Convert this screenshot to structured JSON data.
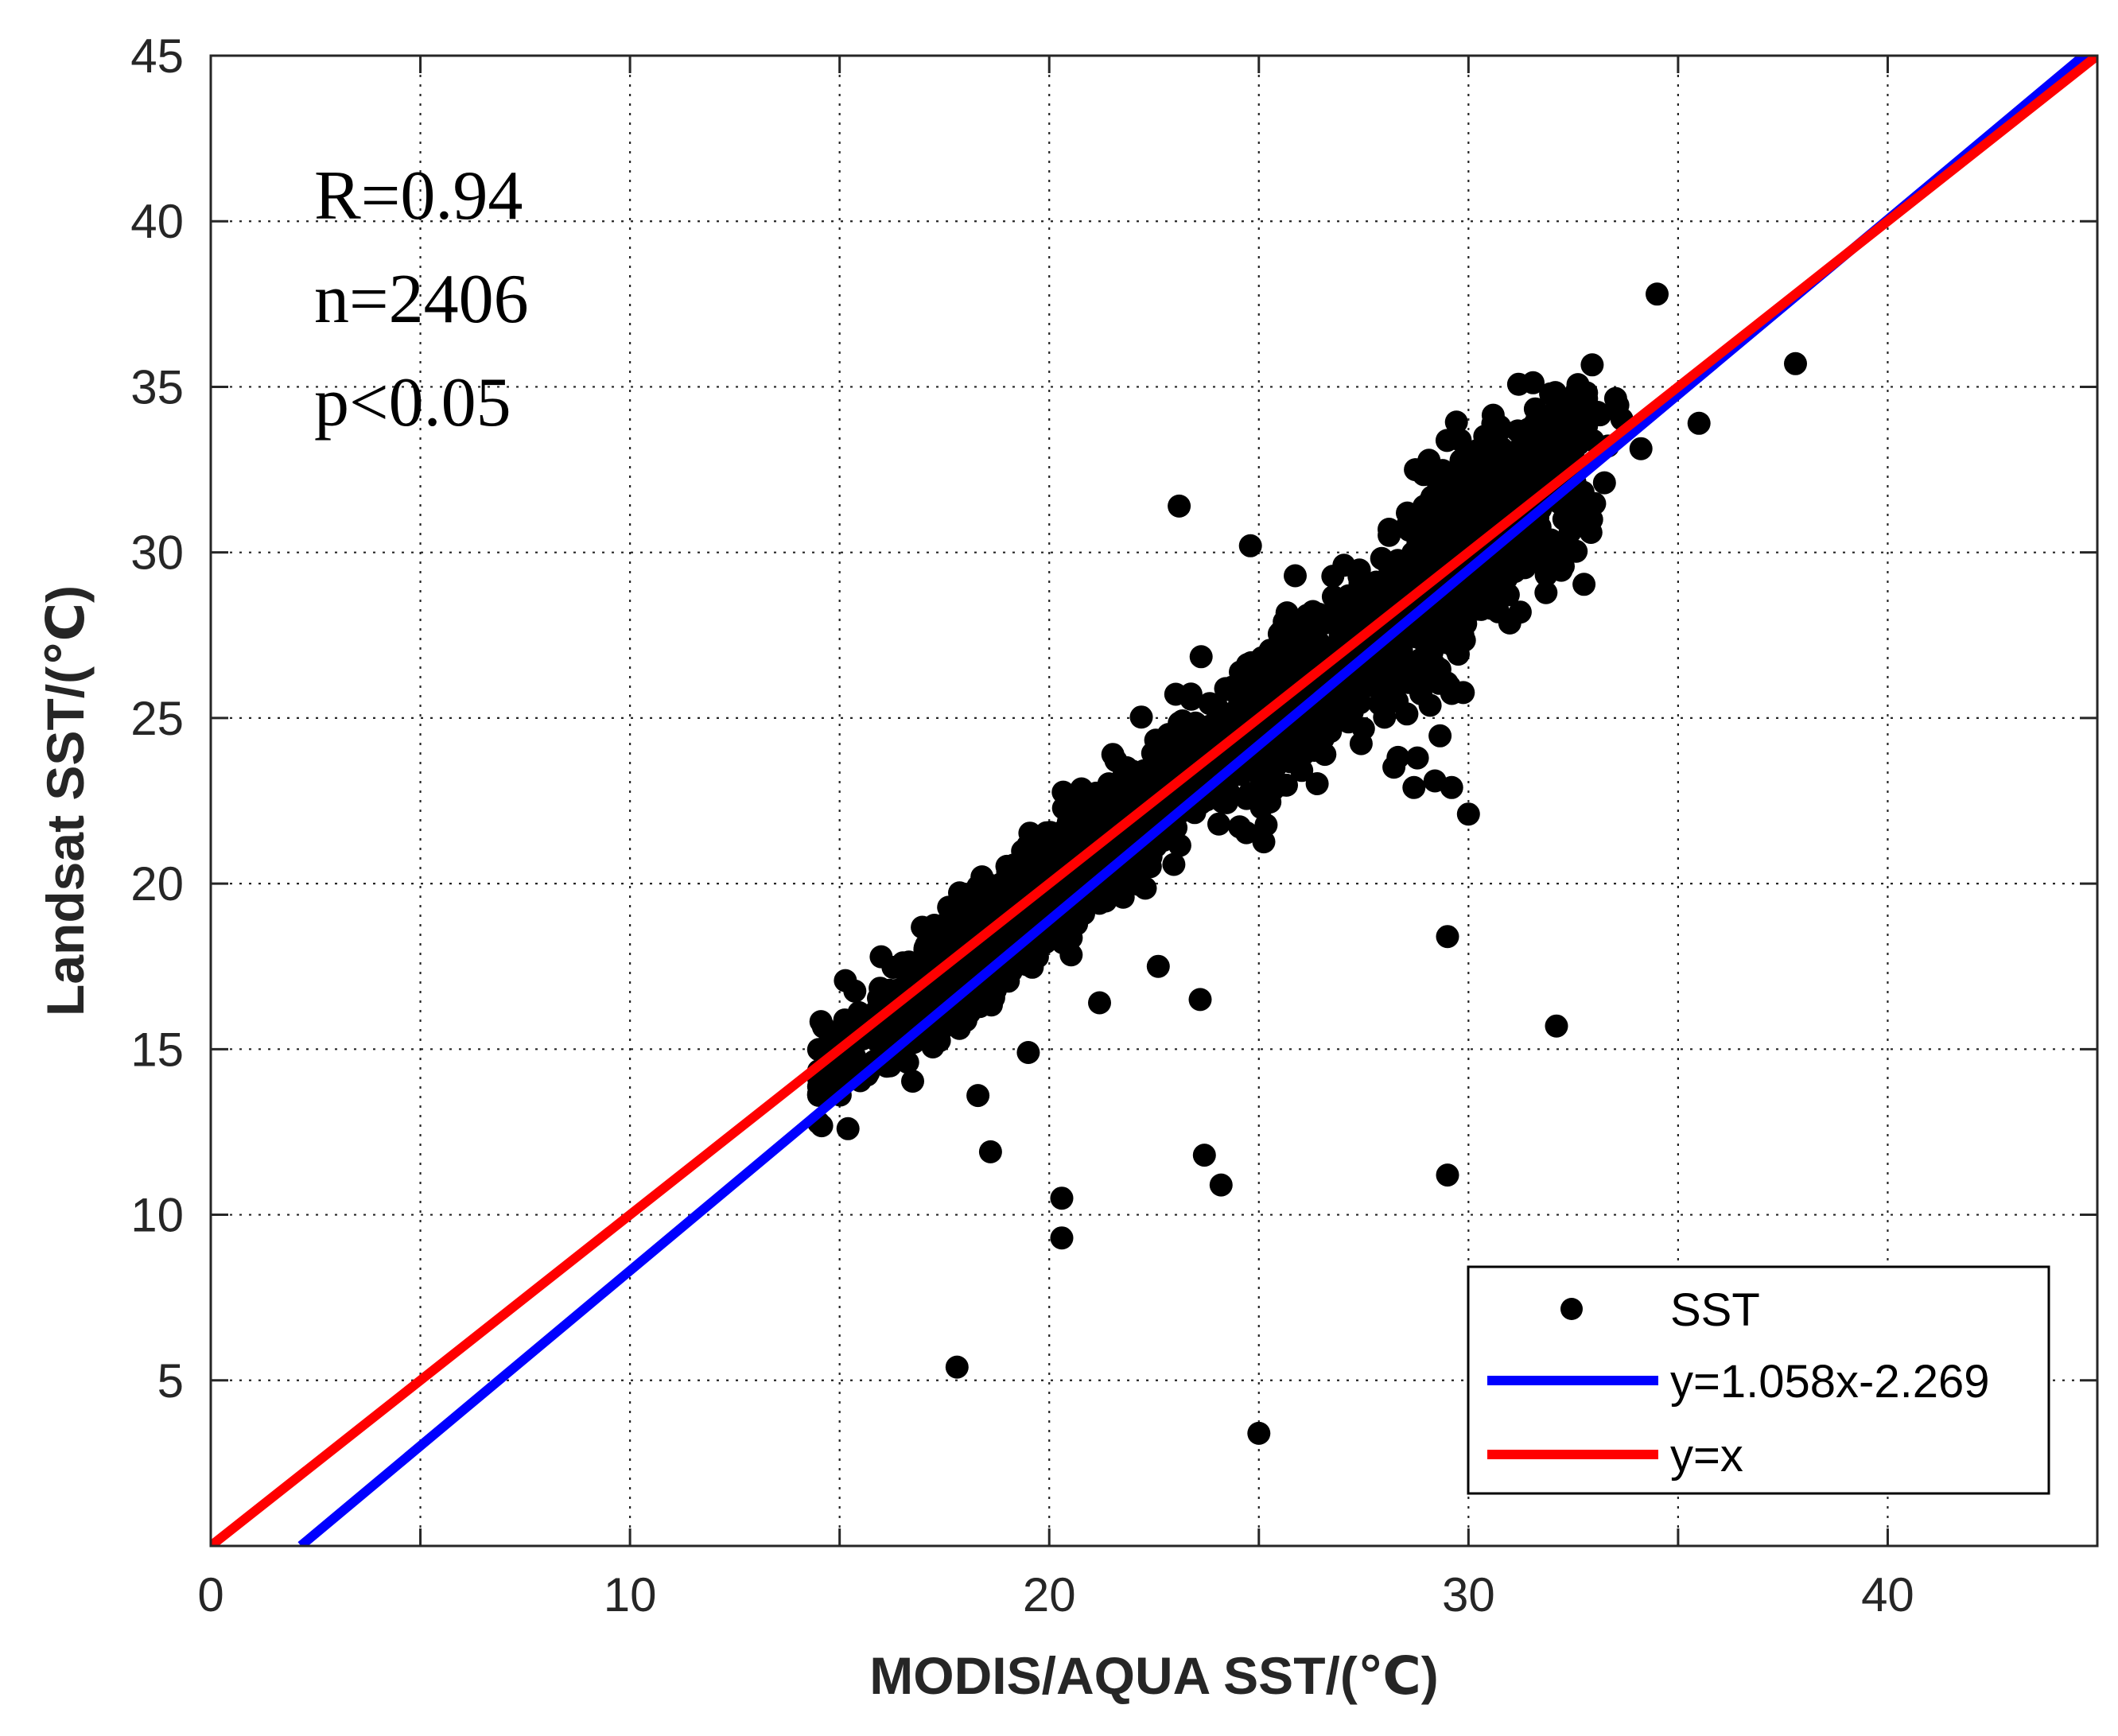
{
  "chart_data": {
    "type": "scatter",
    "xlabel": "MODIS/AQUA SST/(℃)",
    "ylabel": "Landsat SST/(℃)",
    "xlim": [
      0,
      45
    ],
    "ylim": [
      0,
      45
    ],
    "grid": true,
    "x_ticks": [
      0,
      10,
      20,
      30,
      40
    ],
    "y_ticks": [
      5,
      10,
      15,
      20,
      25,
      30,
      35,
      40,
      45
    ],
    "minor_grid_x": [
      5,
      15,
      25,
      35
    ],
    "annotations": [
      "R=0.94",
      "n=2406",
      "p<0.05"
    ],
    "legend_position": "bottom-right",
    "series": [
      {
        "name": "SST",
        "kind": "scatter",
        "color": "#000000",
        "cluster_ranges": {
          "x": [
            14.5,
            36
          ],
          "y": [
            12.5,
            37
          ]
        },
        "outliers": [
          {
            "x": 37.8,
            "y": 35.7
          },
          {
            "x": 35.5,
            "y": 33.9
          },
          {
            "x": 34.5,
            "y": 37.8
          },
          {
            "x": 23.1,
            "y": 31.4
          },
          {
            "x": 24.8,
            "y": 30.2
          },
          {
            "x": 29.5,
            "y": 18.4
          },
          {
            "x": 32.1,
            "y": 15.7
          },
          {
            "x": 29.5,
            "y": 11.2
          },
          {
            "x": 23.7,
            "y": 11.8
          },
          {
            "x": 24.1,
            "y": 10.9
          },
          {
            "x": 20.3,
            "y": 10.5
          },
          {
            "x": 20.3,
            "y": 9.3
          },
          {
            "x": 18.6,
            "y": 11.9
          },
          {
            "x": 17.8,
            "y": 5.4
          },
          {
            "x": 25.0,
            "y": 3.4
          },
          {
            "x": 23.6,
            "y": 16.5
          },
          {
            "x": 22.6,
            "y": 17.5
          },
          {
            "x": 21.2,
            "y": 16.4
          },
          {
            "x": 18.3,
            "y": 13.6
          },
          {
            "x": 19.5,
            "y": 14.9
          },
          {
            "x": 15.2,
            "y": 12.6
          },
          {
            "x": 29.2,
            "y": 23.1
          },
          {
            "x": 30.0,
            "y": 22.1
          },
          {
            "x": 28.7,
            "y": 22.9
          },
          {
            "x": 29.6,
            "y": 22.9
          }
        ]
      },
      {
        "name": "y=1.058x-2.269",
        "kind": "line",
        "color": "#0000ff",
        "slope": 1.058,
        "intercept": -2.269,
        "x_range": [
          2.15,
          45
        ]
      },
      {
        "name": "y=x",
        "kind": "line",
        "color": "#ff0000",
        "slope": 1,
        "intercept": 0,
        "x_range": [
          0,
          45
        ]
      }
    ]
  }
}
